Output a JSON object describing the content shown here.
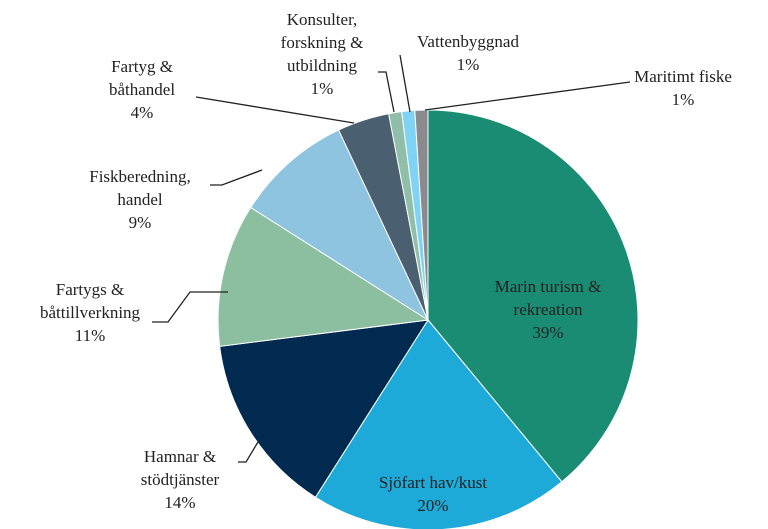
{
  "chart_data": {
    "type": "pie",
    "categories": [
      "Marin turism &\nrekreation",
      "Sjöfart hav/kust",
      "Hamnar &\nstödtjänster",
      "Fartygs &\nbåttillverkning",
      "Fiskberedning,\nhandel",
      "Fartyg &\nbåthandel",
      "Konsulter,\nforskning &\nutbildning",
      "Vattenbyggnad",
      "Maritimt fiske"
    ],
    "values": [
      39,
      20,
      14,
      11,
      9,
      4,
      1,
      1,
      1
    ],
    "value_labels": [
      "39%",
      "20%",
      "14%",
      "11%",
      "9%",
      "4%",
      "1%",
      "1%",
      "1%"
    ],
    "colors": [
      "#1a8c73",
      "#1eaad8",
      "#002a4f",
      "#8bbf9f",
      "#8ec4e0",
      "#4a5f70",
      "#8fbfa8",
      "#7fd3f5",
      "#8a8a8f"
    ]
  }
}
